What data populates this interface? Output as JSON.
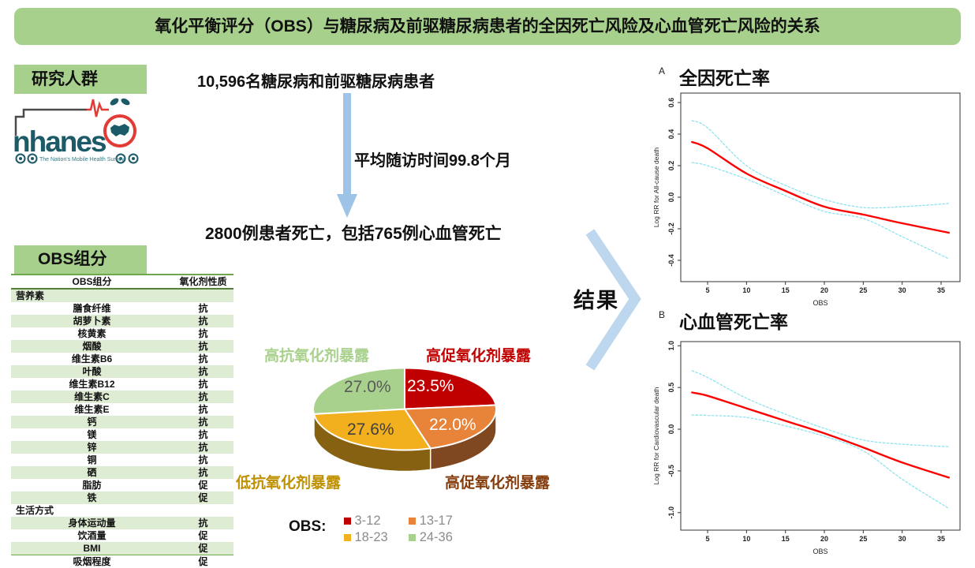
{
  "title": "氧化平衡评分（OBS）与糖尿病及前驱糖尿病患者的全因死亡风险及心血管死亡风险的关系",
  "left_panel": {
    "population_header": "研究人群",
    "logo": {
      "name": "nhanes",
      "tagline": "The Nation's Mobile Health Survey"
    },
    "obs_header": "OBS组分",
    "table": {
      "columns": [
        "OBS组分",
        "氧化剂性质"
      ],
      "rows": [
        {
          "label": "营养素",
          "property": "",
          "section": true
        },
        {
          "label": "膳食纤维",
          "property": "抗"
        },
        {
          "label": "胡萝卜素",
          "property": "抗"
        },
        {
          "label": "核黄素",
          "property": "抗"
        },
        {
          "label": "烟酸",
          "property": "抗"
        },
        {
          "label": "维生素B6",
          "property": "抗"
        },
        {
          "label": "叶酸",
          "property": "抗"
        },
        {
          "label": "维生素B12",
          "property": "抗"
        },
        {
          "label": "维生素C",
          "property": "抗"
        },
        {
          "label": "维生素E",
          "property": "抗"
        },
        {
          "label": "钙",
          "property": "抗"
        },
        {
          "label": "镁",
          "property": "抗"
        },
        {
          "label": "锌",
          "property": "抗"
        },
        {
          "label": "铜",
          "property": "抗"
        },
        {
          "label": "硒",
          "property": "抗"
        },
        {
          "label": "脂肪",
          "property": "促"
        },
        {
          "label": "铁",
          "property": "促"
        },
        {
          "label": "生活方式",
          "property": "",
          "section": true
        },
        {
          "label": "身体运动量",
          "property": "抗"
        },
        {
          "label": "饮酒量",
          "property": "促"
        },
        {
          "label": "BMI",
          "property": "促"
        },
        {
          "label": "吸烟程度",
          "property": "促"
        }
      ]
    }
  },
  "flow": {
    "cohort": "10,596名糖尿病和前驱糖尿病患者",
    "followup": "平均随访时间99.8个月",
    "deaths": "2800例患者死亡，包括765例心血管死亡",
    "result_label": "结果"
  },
  "chart_data": [
    {
      "id": "all-cause-mortality",
      "type": "line",
      "panel_label": "A",
      "title": "全因死亡率",
      "xlabel": "OBS",
      "ylabel": "Log RR for All-cause death",
      "xlim": [
        1.55,
        37.43
      ],
      "ylim": [
        -0.535,
        0.66
      ],
      "xticks": [
        5,
        10,
        15,
        20,
        25,
        30,
        35
      ],
      "yticks": [
        0.6,
        0.4,
        0.2,
        0.0,
        -0.2,
        -0.4
      ],
      "grid": false,
      "x": [
        3,
        5,
        10,
        15,
        20,
        25,
        30,
        36
      ],
      "series": [
        {
          "name": "estimate",
          "color": "#ff0000",
          "style": "solid",
          "values": [
            0.35,
            0.31,
            0.15,
            0.04,
            -0.06,
            -0.11,
            -0.165,
            -0.225
          ]
        },
        {
          "name": "ci-upper",
          "color": "#8fe3ee",
          "style": "dashed",
          "values": [
            0.485,
            0.44,
            0.2,
            0.075,
            -0.015,
            -0.065,
            -0.06,
            -0.04
          ]
        },
        {
          "name": "ci-lower",
          "color": "#8fe3ee",
          "style": "dashed",
          "values": [
            0.22,
            0.2,
            0.115,
            0.01,
            -0.09,
            -0.135,
            -0.25,
            -0.39
          ]
        }
      ]
    },
    {
      "id": "cardiovascular-mortality",
      "type": "line",
      "panel_label": "B",
      "title": "心血管死亡率",
      "xlabel": "OBS",
      "ylabel": "Log RR for Cardiovascular death",
      "xlim": [
        1.55,
        37.43
      ],
      "ylim": [
        -1.21,
        1.05
      ],
      "xticks": [
        5,
        10,
        15,
        20,
        25,
        30,
        35
      ],
      "yticks": [
        1.0,
        0.5,
        0.0,
        -0.5,
        -1.0
      ],
      "grid": false,
      "x": [
        3,
        5,
        10,
        15,
        20,
        25,
        30,
        36
      ],
      "series": [
        {
          "name": "estimate",
          "color": "#ff0000",
          "style": "solid",
          "values": [
            0.44,
            0.4,
            0.25,
            0.1,
            -0.05,
            -0.22,
            -0.4,
            -0.58
          ]
        },
        {
          "name": "ci-upper",
          "color": "#8fe3ee",
          "style": "dashed",
          "values": [
            0.7,
            0.62,
            0.37,
            0.18,
            0.01,
            -0.13,
            -0.18,
            -0.21
          ]
        },
        {
          "name": "ci-lower",
          "color": "#8fe3ee",
          "style": "dashed",
          "values": [
            0.17,
            0.165,
            0.14,
            0.04,
            -0.085,
            -0.26,
            -0.6,
            -0.95
          ]
        }
      ]
    },
    {
      "id": "obs-distribution",
      "type": "pie",
      "legend_title": "OBS:",
      "start_angle_deg": -90,
      "clockwise": true,
      "slices": [
        {
          "label": "高促氧化剂暴露",
          "range": "3-12",
          "value": 23.5,
          "pct_label": "23.5%",
          "color": "#c00000",
          "label_color": "#c00000",
          "pct_color": "#ffffff"
        },
        {
          "label": "高促氧化剂暴露",
          "range": "13-17",
          "value": 22.0,
          "pct_label": "22.0%",
          "color": "#e8833a",
          "label_color": "#843c0c",
          "pct_color": "#ffffff"
        },
        {
          "label": "低抗氧化剂暴露",
          "range": "18-23",
          "value": 27.6,
          "pct_label": "27.6%",
          "color": "#f2b01e",
          "label_color": "#bf9000",
          "pct_color": "#404040"
        },
        {
          "label": "高抗氧化剂暴露",
          "range": "24-36",
          "value": 27.0,
          "pct_label": "27.0%",
          "color": "#a9d18e",
          "label_color": "#a9d18e",
          "pct_color": "#595959"
        }
      ]
    }
  ],
  "colors": {
    "banner_green": "#a8d08d",
    "table_row_green": "#dfecd4",
    "table_line_green": "#6fa84c",
    "arrow_blue": "#9dc3e6",
    "chevron_blue": "#bdd7ee",
    "estimate_red": "#ff0000",
    "ci_cyan": "#8fe3ee",
    "logo_teal": "#1d5a68",
    "logo_red": "#e23b36"
  }
}
